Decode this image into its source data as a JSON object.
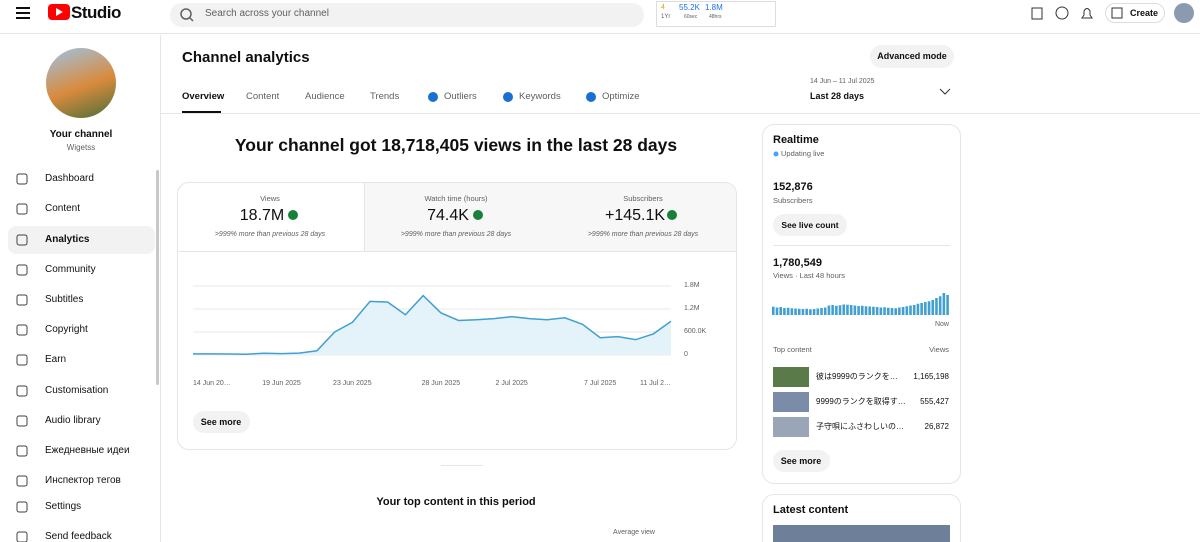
{
  "topbar": {
    "logo": "Studio",
    "search": "Search across your channel",
    "widget": {
      "count": "4",
      "age": "1Yr",
      "subs": "55.2K",
      "subs_unit": "60sec",
      "views": "1.8M",
      "views_unit": "48hrs"
    },
    "create": "Create"
  },
  "sidebar": {
    "channel_title": "Your channel",
    "channel_name": "Wigetss",
    "items": [
      "Dashboard",
      "Content",
      "Analytics",
      "Community",
      "Subtitles",
      "Copyright",
      "Earn",
      "Customisation",
      "Audio library",
      "Ежедневные идеи",
      "Инспектор тегов",
      "Settings",
      "Send feedback"
    ]
  },
  "header": {
    "title": "Channel analytics",
    "advanced_mode": "Advanced mode",
    "date_range": "14 Jun – 11 Jul 2025",
    "period": "Last 28 days",
    "tabs": [
      "Overview",
      "Content",
      "Audience",
      "Trends",
      "Outliers",
      "Keywords",
      "Optimize"
    ]
  },
  "overview": {
    "summary": "Your channel got 18,718,405 views in the last 28 days",
    "metrics": [
      {
        "label": "Views",
        "value": "18.7M",
        "note": ">999% more than previous 28 days"
      },
      {
        "label": "Watch time (hours)",
        "value": "74.4K",
        "note": ">999% more than previous 28 days"
      },
      {
        "label": "Subscribers",
        "value": "+145.1K",
        "note": ">999% more than previous 28 days"
      }
    ],
    "chart": {
      "type": "line",
      "color": "#41a0d0",
      "fill": "#e4f2fa",
      "categories": [
        "14 Jun 20…",
        null,
        null,
        null,
        null,
        "19 Jun 2025",
        null,
        null,
        null,
        "23 Jun 2025",
        null,
        null,
        null,
        null,
        "28 Jun 2025",
        null,
        null,
        null,
        "2 Jul 2025",
        null,
        null,
        null,
        null,
        "7 Jul 2025",
        null,
        null,
        null,
        "11 Jul 2…"
      ],
      "values": [
        30000,
        30000,
        25000,
        20000,
        45000,
        35000,
        50000,
        110000,
        600000,
        850000,
        1400000,
        1380000,
        1050000,
        1550000,
        1100000,
        900000,
        920000,
        950000,
        1000000,
        950000,
        920000,
        970000,
        800000,
        450000,
        480000,
        400000,
        550000,
        880000
      ],
      "ylim": [
        0,
        1800000
      ],
      "yticks": [
        0,
        {
          "value": 600000,
          "label": "600.0K"
        },
        {
          "value": 1200000,
          "label": "1.2M"
        },
        {
          "value": 1800000,
          "label": "1.8M"
        }
      ],
      "grid": true
    },
    "see_more": "See more",
    "top_content_title": "Your top content in this period",
    "top_content_column": "Average view"
  },
  "realtime": {
    "title": "Realtime",
    "status": "Updating live",
    "subscribers": "152,876",
    "subscribers_label": "Subscribers",
    "live_count": "See live count",
    "views": "1,780,549",
    "views_label": "Views · Last 48 hours",
    "bars": {
      "type": "bar",
      "color": "#41a0d0",
      "values": [
        33000,
        30000,
        32000,
        28000,
        29000,
        27000,
        26000,
        25000,
        24000,
        25000,
        23000,
        24000,
        26000,
        28000,
        30000,
        38000,
        40000,
        37000,
        39000,
        42000,
        41000,
        40000,
        38000,
        36000,
        37000,
        35000,
        34000,
        33000,
        32000,
        30000,
        31000,
        29000,
        28000,
        27000,
        30000,
        32000,
        35000,
        38000,
        40000,
        45000,
        48000,
        52000,
        55000,
        60000,
        68000,
        75000,
        88000,
        80000
      ]
    },
    "now": "Now",
    "top_content": "Top content",
    "views_column": "Views",
    "items": [
      {
        "title": "彼は9999のランクを…",
        "views": "1,165,198"
      },
      {
        "title": "9999のランクを取得す…",
        "views": "555,427"
      },
      {
        "title": "子守唄にふさわしいの…",
        "views": "26,872"
      }
    ],
    "see_more": "See more"
  },
  "latest_content": {
    "title": "Latest content"
  }
}
